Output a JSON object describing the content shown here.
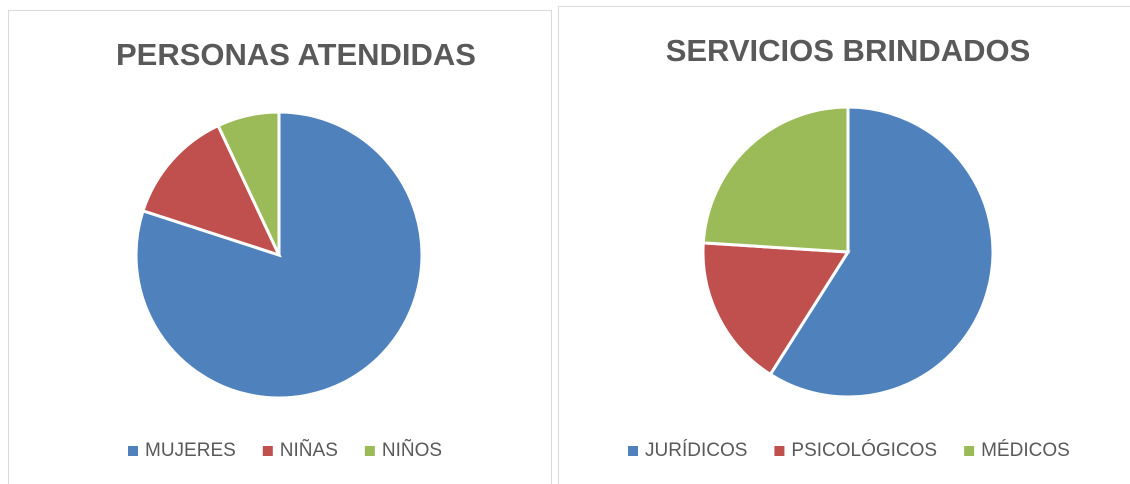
{
  "chart_data": [
    {
      "type": "pie",
      "title": "PERSONAS ATENDIDAS",
      "categories": [
        "MUJERES",
        "NIÑAS",
        "NIÑOS"
      ],
      "values": [
        80,
        13,
        7
      ],
      "colors": [
        "#4f81bd",
        "#c0504d",
        "#9bbb59"
      ],
      "legend": "bottom"
    },
    {
      "type": "pie",
      "title": "SERVICIOS BRINDADOS",
      "categories": [
        "JURÍDICOS",
        "PSICOLÓGICOS",
        "MÉDICOS"
      ],
      "values": [
        59,
        17,
        24
      ],
      "colors": [
        "#4f81bd",
        "#c0504d",
        "#9bbb59"
      ],
      "legend": "bottom"
    }
  ]
}
